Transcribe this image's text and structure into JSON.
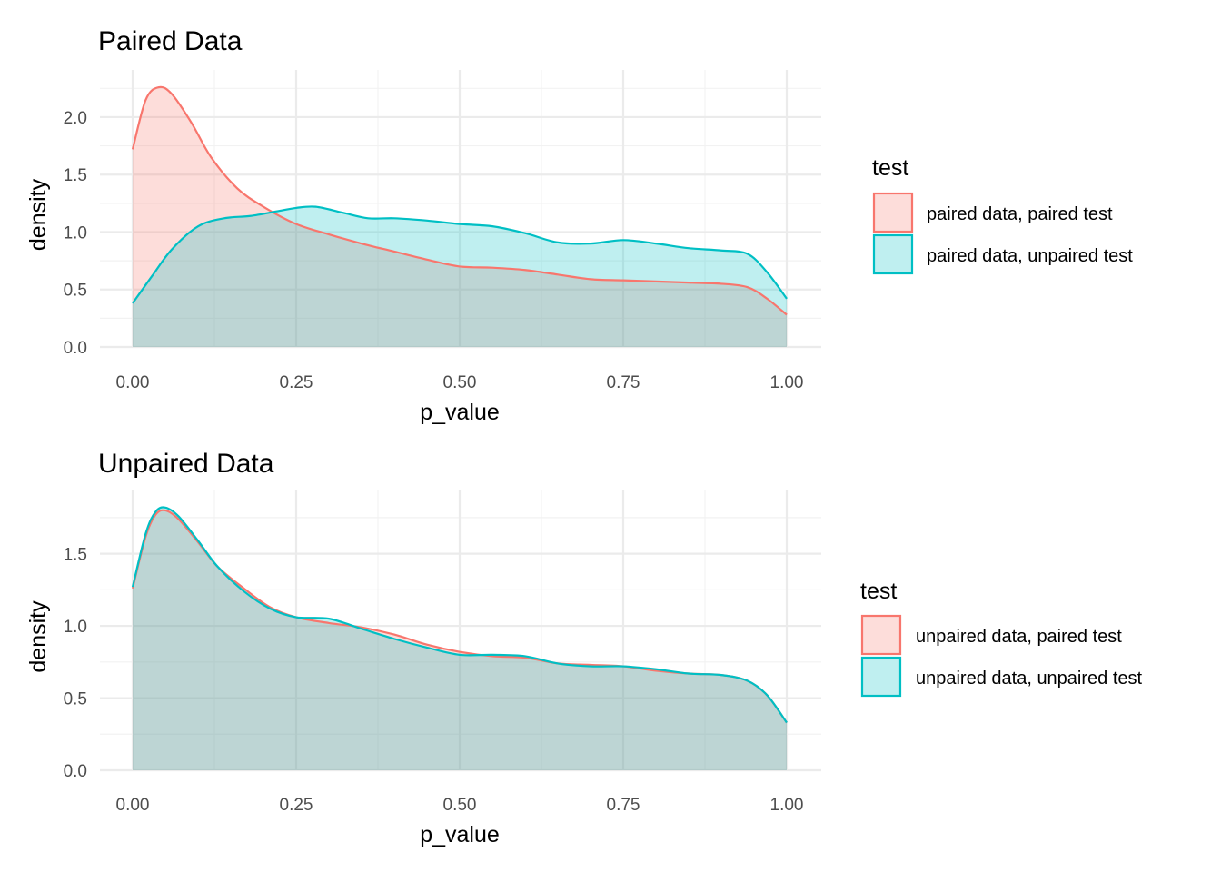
{
  "chart_data": [
    {
      "type": "area",
      "title": "Paired Data",
      "xlabel": "p_value",
      "ylabel": "density",
      "xlim": [
        0,
        1
      ],
      "ylim": [
        0,
        2.3
      ],
      "x_ticks": [
        0,
        0.25,
        0.5,
        0.75,
        1
      ],
      "x_tick_labels": [
        "0.00",
        "0.25",
        "0.50",
        "0.75",
        "1.00"
      ],
      "y_ticks": [
        0,
        0.5,
        1,
        1.5,
        2
      ],
      "y_tick_labels": [
        "0.0",
        "0.5",
        "1.0",
        "1.5",
        "2.0"
      ],
      "grid": true,
      "legend": {
        "title": "test",
        "position": "right"
      },
      "series": [
        {
          "name": "paired data, paired test",
          "color": "#F8766D",
          "x": [
            0,
            0.02,
            0.04,
            0.06,
            0.09,
            0.12,
            0.16,
            0.2,
            0.25,
            0.3,
            0.35,
            0.4,
            0.45,
            0.5,
            0.55,
            0.6,
            0.65,
            0.7,
            0.75,
            0.8,
            0.85,
            0.9,
            0.94,
            0.97,
            1.0
          ],
          "y": [
            1.72,
            2.15,
            2.26,
            2.2,
            1.95,
            1.65,
            1.38,
            1.22,
            1.07,
            0.98,
            0.9,
            0.83,
            0.76,
            0.7,
            0.69,
            0.67,
            0.63,
            0.59,
            0.58,
            0.57,
            0.56,
            0.55,
            0.52,
            0.42,
            0.28
          ]
        },
        {
          "name": "paired data, unpaired test",
          "color": "#00BFC4",
          "x": [
            0,
            0.03,
            0.06,
            0.1,
            0.14,
            0.18,
            0.22,
            0.25,
            0.28,
            0.32,
            0.36,
            0.4,
            0.45,
            0.5,
            0.55,
            0.6,
            0.65,
            0.7,
            0.75,
            0.8,
            0.85,
            0.9,
            0.94,
            0.97,
            1.0
          ],
          "y": [
            0.38,
            0.62,
            0.85,
            1.05,
            1.12,
            1.14,
            1.18,
            1.21,
            1.22,
            1.17,
            1.12,
            1.12,
            1.1,
            1.07,
            1.05,
            0.99,
            0.91,
            0.9,
            0.93,
            0.9,
            0.86,
            0.84,
            0.81,
            0.65,
            0.42
          ]
        }
      ]
    },
    {
      "type": "area",
      "title": "Unpaired Data",
      "xlabel": "p_value",
      "ylabel": "density",
      "xlim": [
        0,
        1
      ],
      "ylim": [
        0,
        1.85
      ],
      "x_ticks": [
        0,
        0.25,
        0.5,
        0.75,
        1
      ],
      "x_tick_labels": [
        "0.00",
        "0.25",
        "0.50",
        "0.75",
        "1.00"
      ],
      "y_ticks": [
        0,
        0.5,
        1,
        1.5
      ],
      "y_tick_labels": [
        "0.0",
        "0.5",
        "1.0",
        "1.5"
      ],
      "grid": true,
      "legend": {
        "title": "test",
        "position": "right"
      },
      "series": [
        {
          "name": "unpaired data, paired test",
          "color": "#F8766D",
          "x": [
            0,
            0.02,
            0.035,
            0.05,
            0.07,
            0.1,
            0.13,
            0.17,
            0.21,
            0.25,
            0.3,
            0.35,
            0.4,
            0.45,
            0.5,
            0.55,
            0.6,
            0.65,
            0.7,
            0.75,
            0.8,
            0.85,
            0.9,
            0.94,
            0.97,
            1.0
          ],
          "y": [
            1.26,
            1.62,
            1.77,
            1.8,
            1.74,
            1.58,
            1.41,
            1.26,
            1.13,
            1.06,
            1.02,
            0.99,
            0.94,
            0.87,
            0.82,
            0.79,
            0.78,
            0.74,
            0.73,
            0.72,
            0.69,
            0.67,
            0.66,
            0.62,
            0.52,
            0.33
          ]
        },
        {
          "name": "unpaired data, unpaired test",
          "color": "#00BFC4",
          "x": [
            0,
            0.02,
            0.035,
            0.05,
            0.07,
            0.1,
            0.13,
            0.17,
            0.21,
            0.25,
            0.3,
            0.35,
            0.4,
            0.45,
            0.5,
            0.55,
            0.6,
            0.65,
            0.7,
            0.75,
            0.8,
            0.85,
            0.9,
            0.94,
            0.97,
            1.0
          ],
          "y": [
            1.27,
            1.64,
            1.79,
            1.82,
            1.76,
            1.59,
            1.41,
            1.24,
            1.12,
            1.06,
            1.05,
            0.98,
            0.91,
            0.85,
            0.8,
            0.8,
            0.79,
            0.74,
            0.72,
            0.72,
            0.7,
            0.67,
            0.66,
            0.62,
            0.52,
            0.33
          ]
        }
      ]
    }
  ]
}
